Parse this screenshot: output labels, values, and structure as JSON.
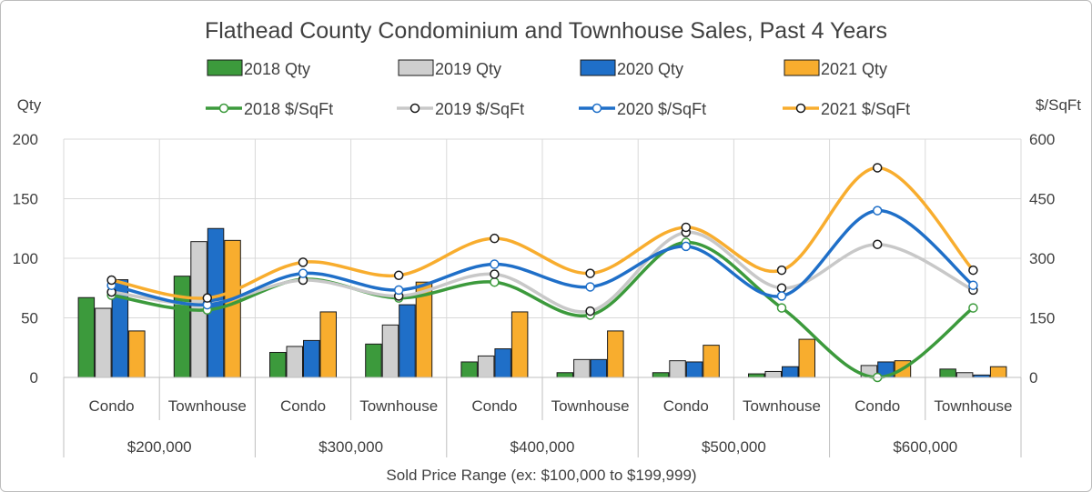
{
  "chart_data": {
    "type": "bar",
    "title": "Flathead County Condominium and Townhouse Sales, Past 4 Years",
    "xlabel": "Sold Price Range (ex: $100,000 to $199,999)",
    "ylabel_left": "Qty",
    "ylabel_right": "$/SqFt",
    "ylim_left": [
      0,
      200
    ],
    "ylim_right": [
      0,
      600
    ],
    "yticks_left": [
      "0",
      "50",
      "100",
      "150",
      "200"
    ],
    "yticks_right": [
      "0",
      "150",
      "300",
      "450",
      "600"
    ],
    "grid": true,
    "legend_position": "top",
    "groups": [
      "$200,000",
      "$300,000",
      "$400,000",
      "$500,000",
      "$600,000"
    ],
    "categories": [
      "Condo",
      "Townhouse",
      "Condo",
      "Townhouse",
      "Condo",
      "Townhouse",
      "Condo",
      "Townhouse",
      "Condo",
      "Townhouse"
    ],
    "bar_series": [
      {
        "name": "2018 Qty",
        "color": "#3c9a3c",
        "values": [
          67,
          85,
          21,
          28,
          13,
          4,
          4,
          3,
          0,
          7
        ]
      },
      {
        "name": "2019 Qty",
        "color": "#cfcfcf",
        "values": [
          58,
          114,
          26,
          44,
          18,
          15,
          14,
          5,
          10,
          4
        ]
      },
      {
        "name": "2020 Qty",
        "color": "#1f6fc8",
        "values": [
          82,
          125,
          31,
          61,
          24,
          15,
          13,
          9,
          13,
          2
        ]
      },
      {
        "name": "2021 Qty",
        "color": "#f8ad2e",
        "values": [
          39,
          115,
          55,
          80,
          55,
          39,
          27,
          32,
          14,
          9
        ]
      }
    ],
    "line_series": [
      {
        "name": "2018 $/SqFt",
        "color": "#3c9a3c",
        "marker_fill": "#ffffff",
        "values": [
          207,
          170,
          247,
          200,
          240,
          157,
          340,
          175,
          0,
          175
        ]
      },
      {
        "name": "2019 $/SqFt",
        "color": "#c8c8c8",
        "marker_fill": "#ffffff",
        "values": [
          215,
          185,
          245,
          205,
          260,
          167,
          365,
          225,
          335,
          220
        ]
      },
      {
        "name": "2020 $/SqFt",
        "color": "#1f6fc8",
        "marker_fill": "#ffffff",
        "values": [
          232,
          183,
          262,
          220,
          285,
          228,
          330,
          205,
          420,
          232
        ]
      },
      {
        "name": "2021 $/SqFt",
        "color": "#f8ad2e",
        "marker_fill": "#ffffff",
        "values": [
          245,
          200,
          290,
          257,
          350,
          262,
          378,
          270,
          528,
          270
        ]
      }
    ]
  }
}
